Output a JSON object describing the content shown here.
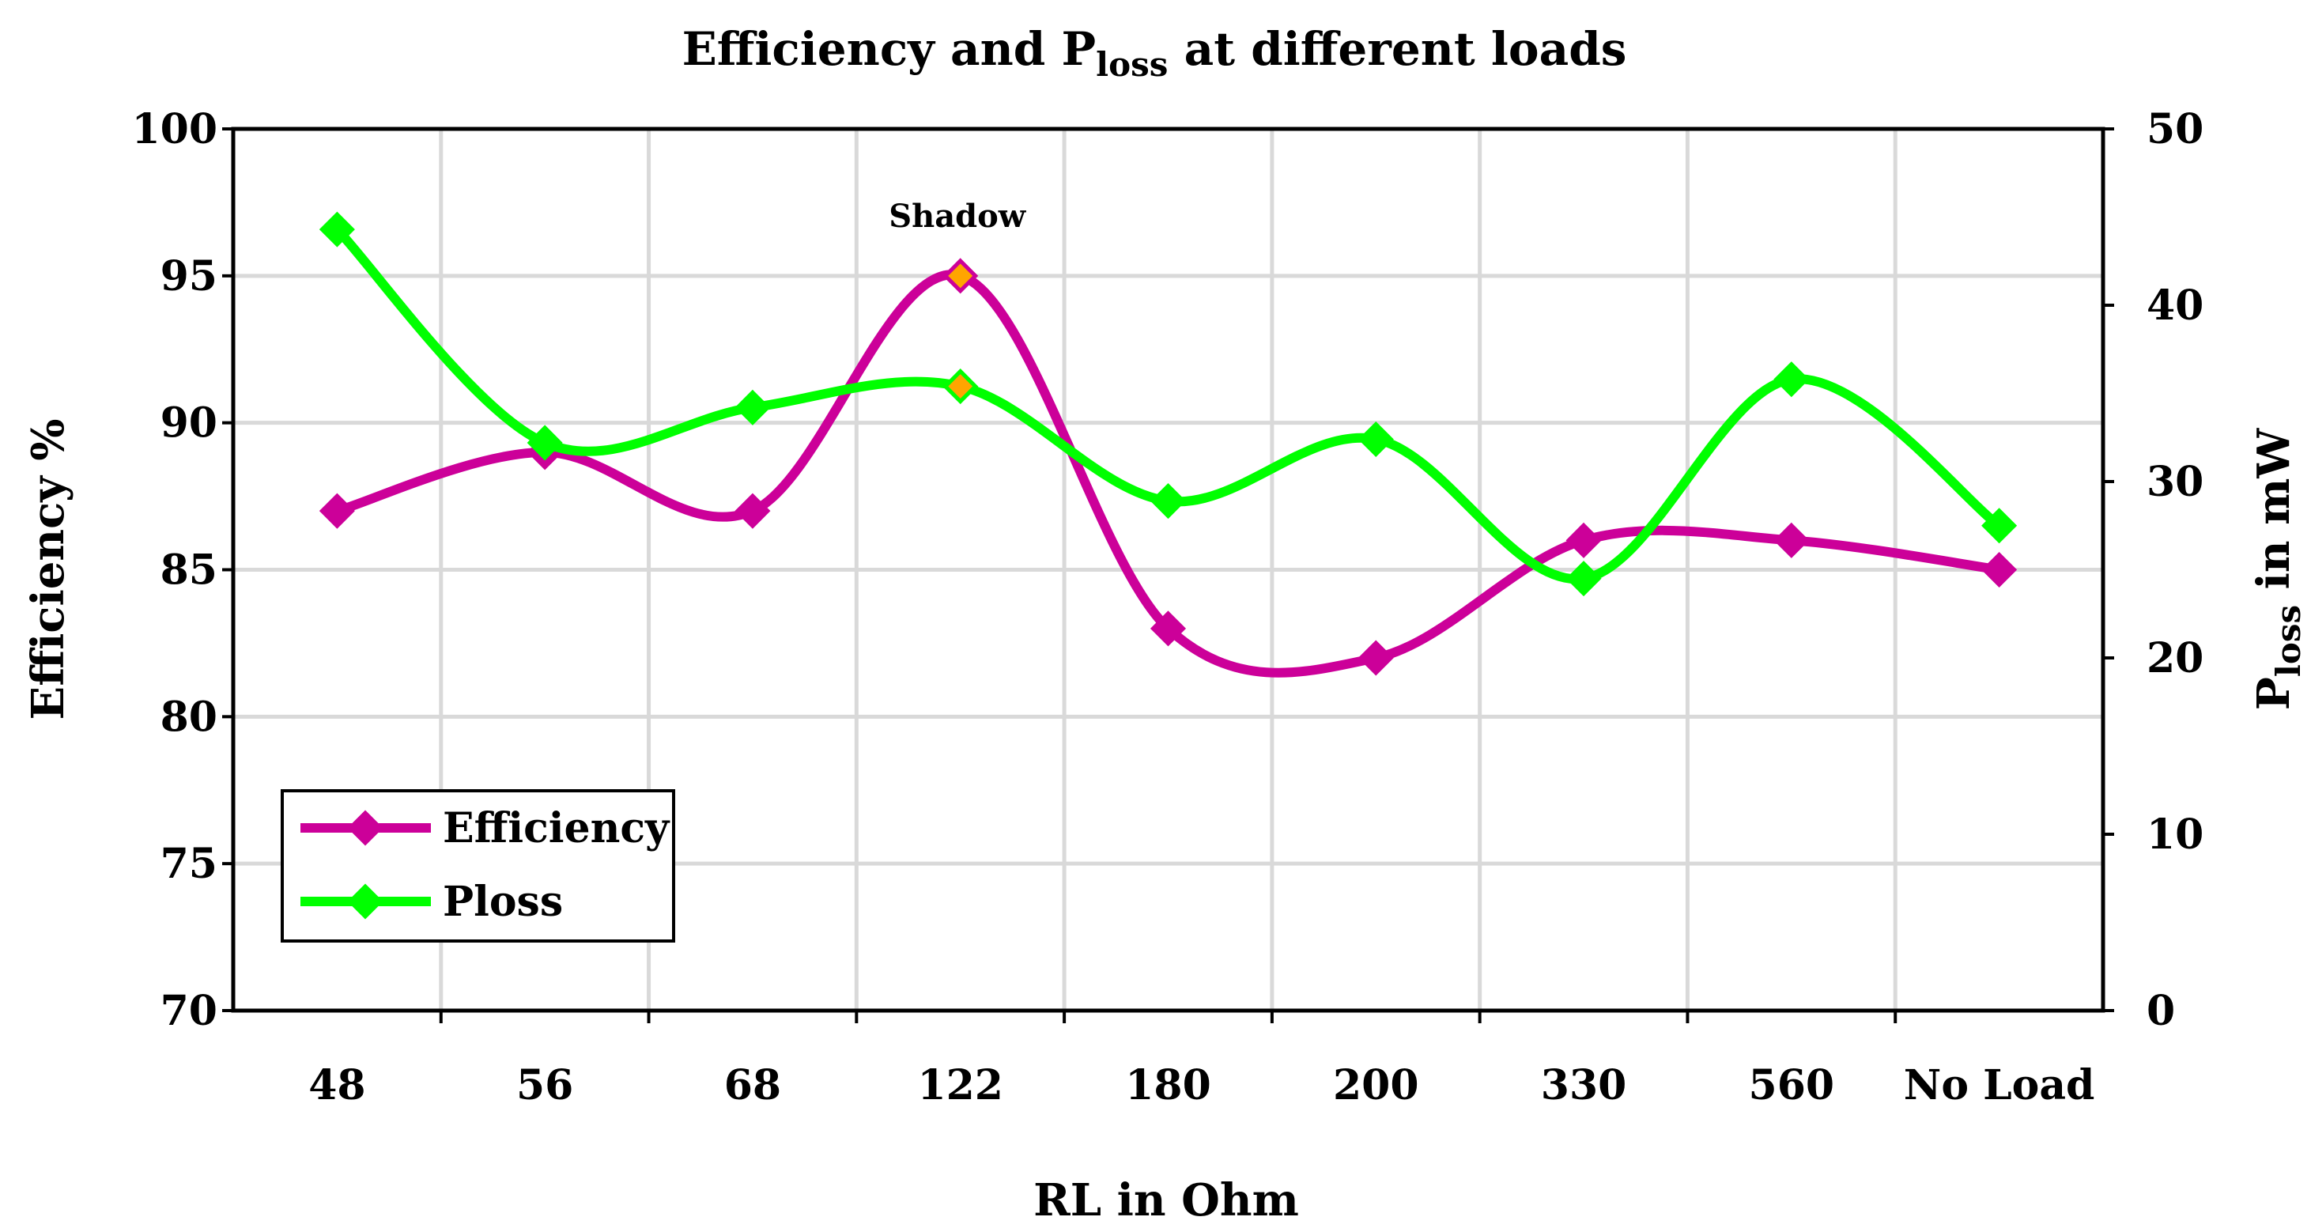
{
  "chart_data": {
    "type": "line",
    "title": {
      "main_prefix": "Efficiency and P",
      "subscript": "loss",
      "main_suffix": " at different loads"
    },
    "xlabel": "RL in Ohm",
    "ylabel": "Efficiency %",
    "y2label": {
      "prefix": "P",
      "subscript": "loss",
      "suffix": " in mW"
    },
    "categories": [
      "48",
      "56",
      "68",
      "122",
      "180",
      "200",
      "330",
      "560",
      "No Load"
    ],
    "ylim": [
      70,
      100
    ],
    "y_ticks": [
      70,
      75,
      80,
      85,
      90,
      95,
      100
    ],
    "y2lim": [
      0,
      50
    ],
    "y2_ticks": [
      0,
      10,
      20,
      30,
      40,
      50
    ],
    "grid": true,
    "legend_position": "bottom-left",
    "series": [
      {
        "name": "Efficiency",
        "axis": "left",
        "color": "#cc0099",
        "values": [
          87,
          89,
          87,
          95,
          83,
          82,
          86,
          86,
          85
        ]
      },
      {
        "name": "Ploss",
        "axis": "right",
        "color": "#00ff00",
        "values": [
          44.3,
          32.2,
          34.2,
          35.4,
          28.9,
          32.4,
          24.5,
          35.8,
          27.5
        ]
      }
    ],
    "highlight": {
      "label": "Shadow",
      "category_index": 3,
      "color": "#ffa500"
    }
  }
}
